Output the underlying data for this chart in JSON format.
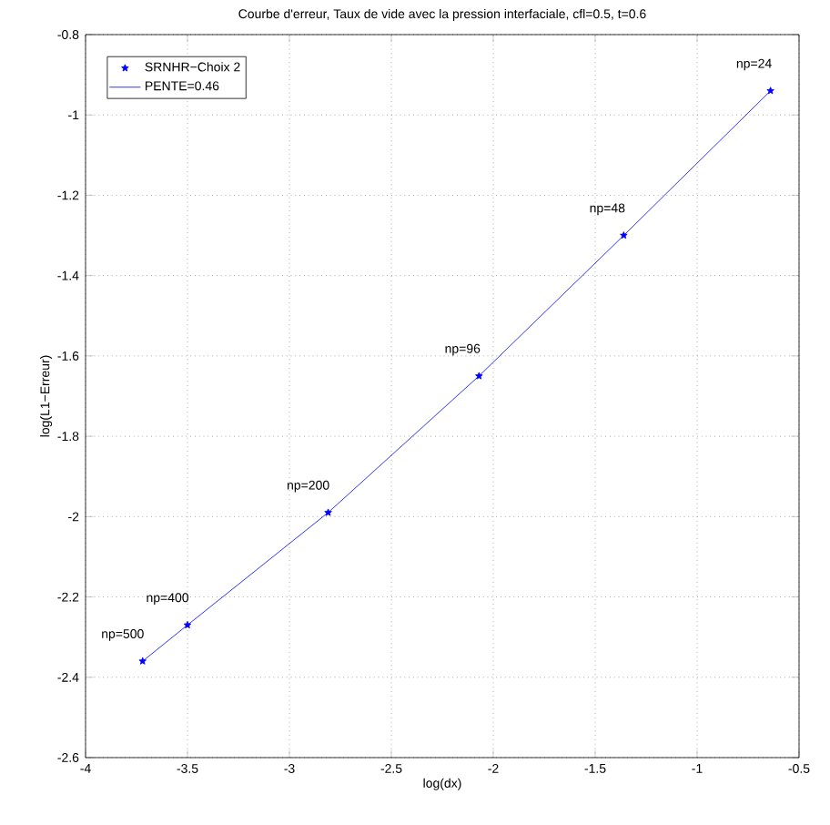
{
  "chart_data": {
    "type": "line",
    "title": "Courbe d'erreur, Taux de vide avec la pression interfaciale, cfl=0.5, t=0.6",
    "xlabel": "log(dx)",
    "ylabel": "log(L1−Erreur)",
    "xlim": [
      -4,
      -0.5
    ],
    "xticks": [
      -4,
      -3.5,
      -3,
      -2.5,
      -2,
      -1.5,
      -1,
      -0.5
    ],
    "ylim": [
      -2.6,
      -0.8
    ],
    "yticks": [
      -2.6,
      -2.4,
      -2.2,
      -2,
      -1.8,
      -1.6,
      -1.4,
      -1.2,
      -1,
      -0.8
    ],
    "grid": true,
    "legend": "top left",
    "series": [
      {
        "name": "SRNHR−Choix 2",
        "type": "scatter",
        "marker": "star",
        "color": "#0000ff",
        "x": [
          -3.72,
          -3.5,
          -2.81,
          -2.07,
          -1.36,
          -0.64
        ],
        "values": [
          -2.36,
          -2.27,
          -1.99,
          -1.65,
          -1.3,
          -0.94
        ]
      },
      {
        "name": "PENTE=0.46",
        "marker": "none",
        "color": "#0000ff",
        "x": [
          -3.72,
          -3.5,
          -2.81,
          -2.07,
          -1.36,
          -0.64
        ],
        "values": [
          -2.36,
          -2.27,
          -1.99,
          -1.65,
          -1.3,
          -0.94
        ]
      }
    ],
    "annotations": [
      {
        "text": "np=500",
        "x": -3.72,
        "y": -2.36
      },
      {
        "text": "np=400",
        "x": -3.5,
        "y": -2.27
      },
      {
        "text": "np=200",
        "x": -2.81,
        "y": -1.99
      },
      {
        "text": "np=96",
        "x": -2.07,
        "y": -1.65
      },
      {
        "text": "np=48",
        "x": -1.36,
        "y": -1.3
      },
      {
        "text": "np=24",
        "x": -0.64,
        "y": -0.94
      }
    ]
  }
}
